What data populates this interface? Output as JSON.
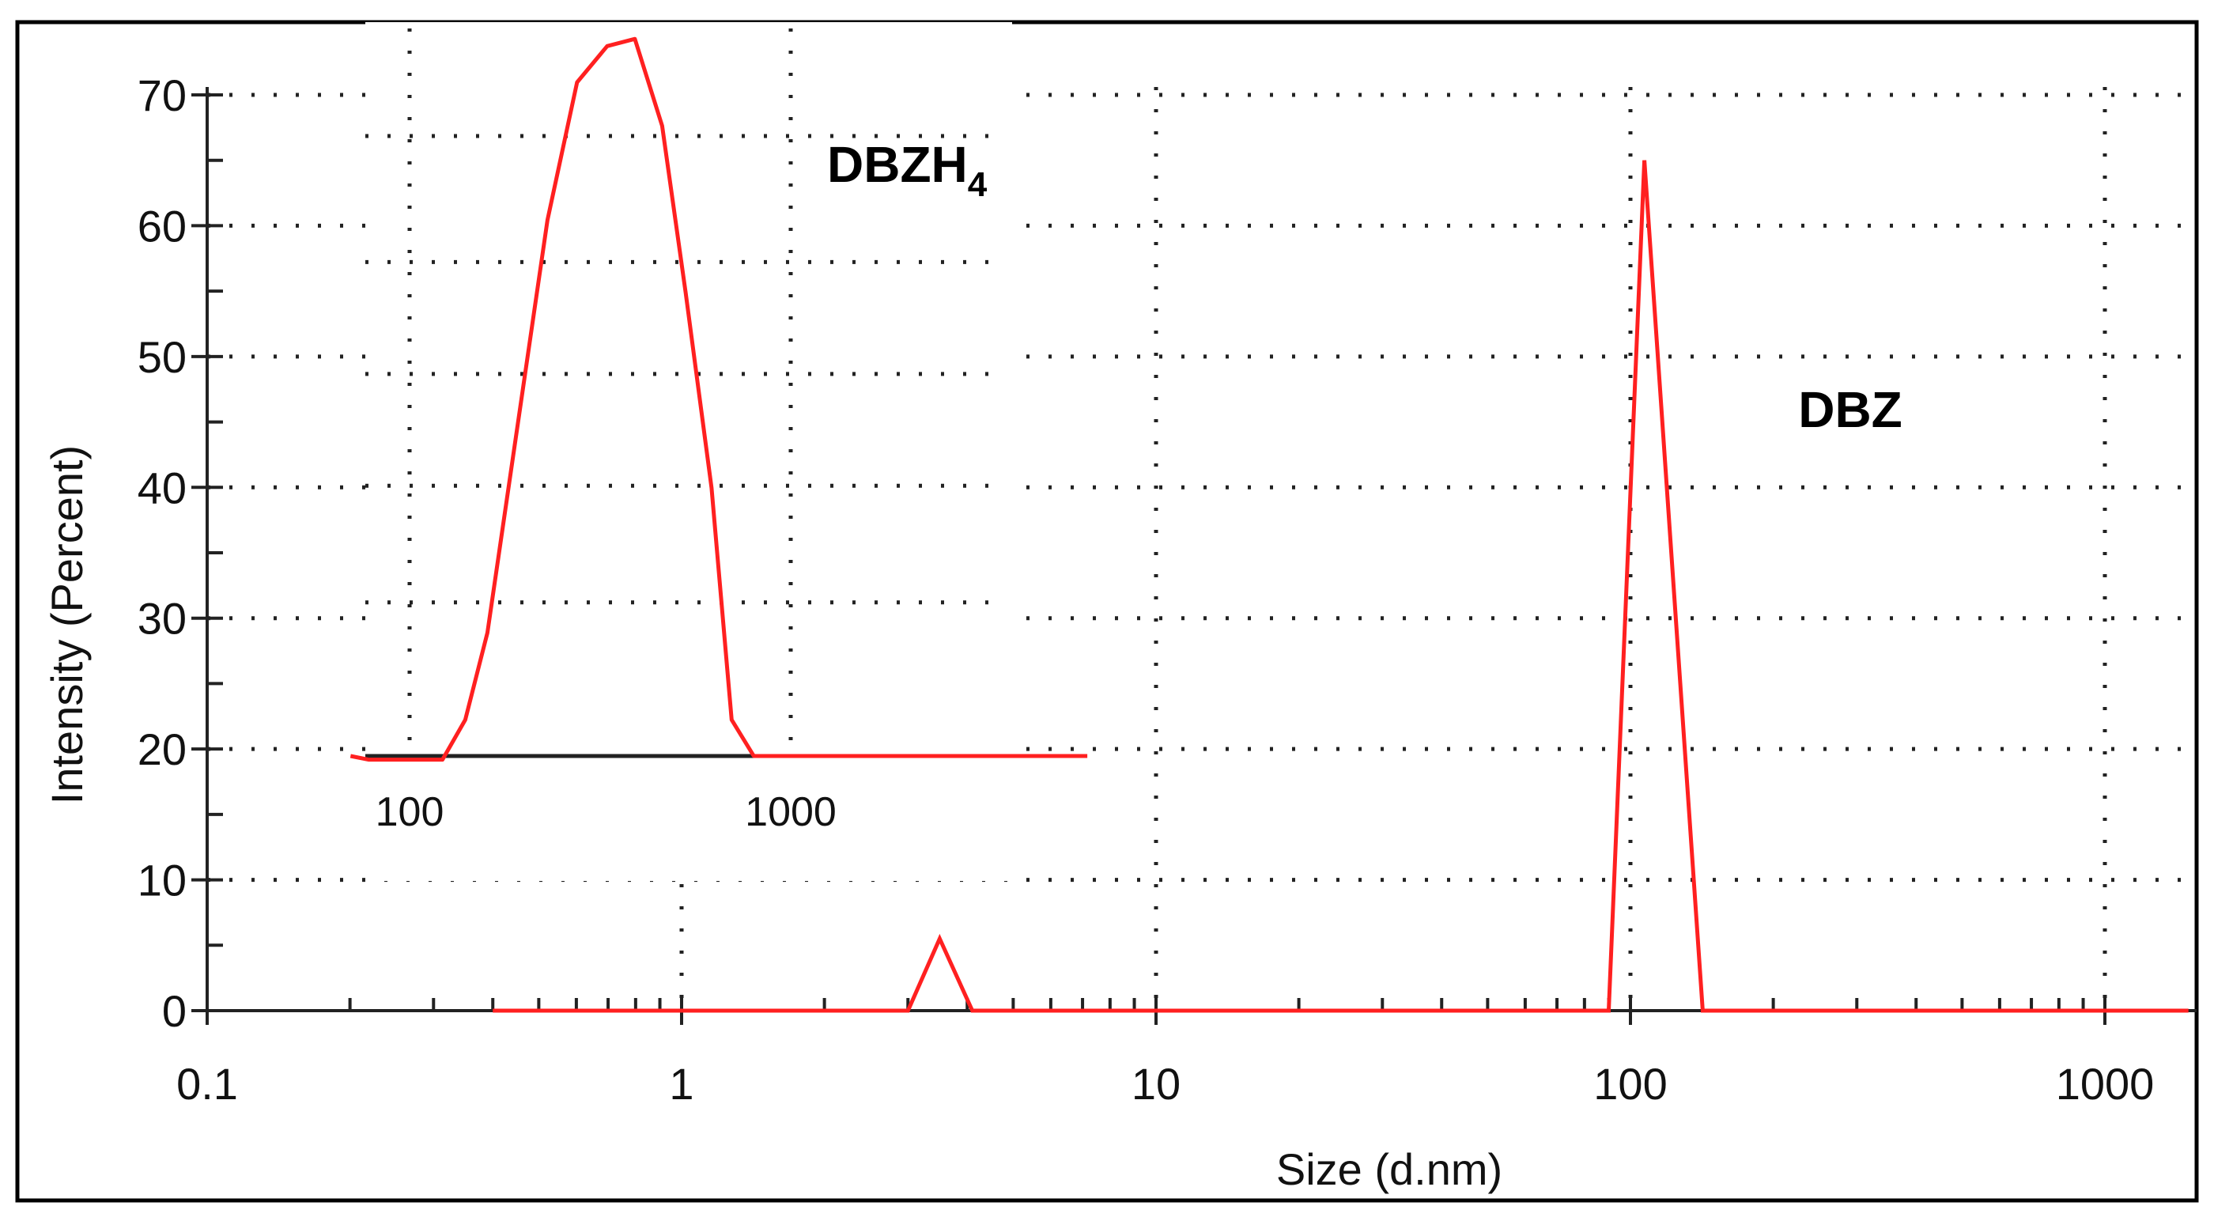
{
  "chart_data": [
    {
      "type": "line",
      "scale_x": "log",
      "xlabel": "Size (d.nm)",
      "ylabel": "Intensity (Percent)",
      "xlim": [
        0.1,
        1500
      ],
      "ylim": [
        0,
        70
      ],
      "x_ticks": [
        "0.1",
        "1",
        "10",
        "100",
        "1000"
      ],
      "y_ticks": [
        "0",
        "10",
        "20",
        "30",
        "40",
        "50",
        "60",
        "70"
      ],
      "grid": true,
      "line_color": "#ff2020",
      "series": [
        {
          "x": [
            0.4,
            3.0,
            3.5,
            4.1,
            90,
            107,
            142,
            1500
          ],
          "values": [
            0,
            0,
            5.5,
            0,
            0,
            65,
            0,
            0
          ]
        }
      ],
      "annotations": [
        {
          "label": "DBZ",
          "x": 330,
          "y": 46
        }
      ]
    },
    {
      "type": "line",
      "scale_x": "log",
      "inset": true,
      "xlim": [
        70,
        6000
      ],
      "ylim": [
        0,
        100
      ],
      "x_ticks": [
        "100",
        "1000"
      ],
      "grid": true,
      "line_color": "#ff2020",
      "series": [
        {
          "x": [
            70,
            78,
            100,
            122,
            140,
            160,
            190,
            230,
            275,
            330,
            390,
            460,
            530,
            620,
            700,
            800,
            6000
          ],
          "values": [
            0,
            -0.5,
            -0.5,
            -0.5,
            5,
            17,
            44,
            74,
            93,
            98,
            99,
            87,
            64,
            37,
            5,
            0,
            0
          ]
        }
      ],
      "annotations": [
        {
          "label": "DBZH",
          "subscript": "4",
          "x": 3000,
          "y": 75
        }
      ]
    }
  ]
}
